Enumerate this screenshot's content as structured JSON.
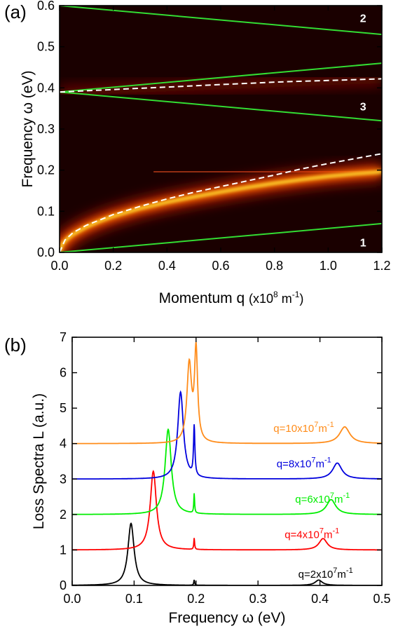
{
  "chart_data": [
    {
      "panel_label": "(a)",
      "type": "heatmap",
      "xlabel": "Momentum q",
      "xunit": "(x10",
      "xunit_sup": "8",
      "xunit_end": " m",
      "xunit_sup2": "-1",
      "xunit_close": ")",
      "ylabel": "Frequency ω (eV)",
      "xlim": [
        0.0,
        1.2
      ],
      "ylim": [
        0.0,
        0.6
      ],
      "xticks": [
        "0.0",
        "0.2",
        "0.4",
        "0.6",
        "0.8",
        "1.0",
        "1.2"
      ],
      "yticks": [
        "0.0",
        "0.1",
        "0.2",
        "0.3",
        "0.4",
        "0.5",
        "0.6"
      ],
      "region_labels": [
        {
          "text": "1",
          "q": 1.13,
          "w": 0.025
        },
        {
          "text": "2",
          "q": 1.13,
          "w": 0.57
        },
        {
          "text": "3",
          "q": 1.13,
          "w": 0.355
        }
      ],
      "green_lines": [
        {
          "q": [
            0.0,
            1.2
          ],
          "w": [
            0.0,
            0.07
          ]
        },
        {
          "q": [
            0.0,
            1.2
          ],
          "w": [
            0.39,
            0.32
          ]
        },
        {
          "q": [
            0.0,
            1.2
          ],
          "w": [
            0.39,
            0.46
          ]
        },
        {
          "q": [
            0.0,
            1.2
          ],
          "w": [
            0.6,
            0.53
          ]
        }
      ],
      "dashed_curves": [
        {
          "q": [
            0.0,
            0.02,
            0.05,
            0.1,
            0.2,
            0.3,
            0.4,
            0.5,
            0.6,
            0.7,
            0.8,
            0.9,
            1.0,
            1.1,
            1.2
          ],
          "w": [
            0.0,
            0.03,
            0.048,
            0.066,
            0.092,
            0.112,
            0.13,
            0.146,
            0.16,
            0.174,
            0.188,
            0.203,
            0.216,
            0.228,
            0.24
          ]
        },
        {
          "q": [
            0.0,
            0.1,
            0.2,
            0.3,
            0.4,
            0.5,
            0.6,
            0.7,
            0.8,
            0.9,
            1.0,
            1.1,
            1.2
          ],
          "w": [
            0.39,
            0.393,
            0.396,
            0.399,
            0.402,
            0.405,
            0.408,
            0.411,
            0.414,
            0.416,
            0.418,
            0.42,
            0.422
          ]
        }
      ],
      "bright_band": {
        "q": [
          0.0,
          0.01,
          0.03,
          0.05,
          0.1,
          0.15,
          0.2,
          0.3,
          0.4,
          0.5,
          0.6,
          0.7,
          0.8,
          0.9,
          1.0,
          1.1,
          1.2
        ],
        "w": [
          0.0,
          0.02,
          0.034,
          0.044,
          0.062,
          0.076,
          0.088,
          0.107,
          0.122,
          0.135,
          0.147,
          0.158,
          0.168,
          0.177,
          0.185,
          0.191,
          0.196
        ]
      },
      "faint_band": {
        "q": [
          0.0,
          0.3,
          0.6,
          0.9,
          1.2
        ],
        "w": [
          0.39,
          0.398,
          0.405,
          0.413,
          0.42
        ]
      },
      "flat_line_w": 0.196,
      "colors": {
        "background": "#1a0000",
        "band": "#ffdd33",
        "glow": "#e02000",
        "green": "#33dd33",
        "dashed": "#ffffff"
      }
    },
    {
      "panel_label": "(b)",
      "type": "line",
      "xlabel": "Frequency ω (eV)",
      "ylabel": "Loss Spectra L (a.u.)",
      "xlim": [
        0.0,
        0.5
      ],
      "ylim": [
        0,
        7
      ],
      "xticks": [
        "0.0",
        "0.1",
        "0.2",
        "0.3",
        "0.4",
        "0.5"
      ],
      "yticks": [
        "0",
        "1",
        "2",
        "3",
        "4",
        "5",
        "6",
        "7"
      ],
      "series": [
        {
          "label_main": "q=2x10",
          "label_sup": "7",
          "label_end": "m",
          "label_sup2": "-1",
          "color": "#000000",
          "offset": 0,
          "peaks": [
            {
              "w": 0.095,
              "h": 1.75,
              "g": 0.006
            },
            {
              "w": 0.197,
              "h": 0.15,
              "g": 0.0008
            },
            {
              "w": 0.398,
              "h": 0.15,
              "g": 0.007
            }
          ]
        },
        {
          "label_main": "q=4x10",
          "label_sup": "7",
          "label_end": "m",
          "label_sup2": "-1",
          "color": "#ff0000",
          "offset": 1,
          "peaks": [
            {
              "w": 0.131,
              "h": 2.22,
              "g": 0.006
            },
            {
              "w": 0.197,
              "h": 0.32,
              "g": 0.0008
            },
            {
              "w": 0.405,
              "h": 0.32,
              "g": 0.008
            }
          ]
        },
        {
          "label_main": "q=6x10",
          "label_sup": "7",
          "label_end": "m",
          "label_sup2": "-1",
          "color": "#00ee00",
          "offset": 2,
          "peaks": [
            {
              "w": 0.155,
              "h": 2.4,
              "g": 0.006
            },
            {
              "w": 0.197,
              "h": 0.55,
              "g": 0.0008
            },
            {
              "w": 0.418,
              "h": 0.42,
              "g": 0.009
            }
          ]
        },
        {
          "label_main": "q=8x10",
          "label_sup": "7",
          "label_end": "m",
          "label_sup2": "-1",
          "color": "#0000dd",
          "offset": 3,
          "peaks": [
            {
              "w": 0.175,
              "h": 2.45,
              "g": 0.0055
            },
            {
              "w": 0.197,
              "h": 1.4,
              "g": 0.0013
            },
            {
              "w": 0.428,
              "h": 0.45,
              "g": 0.009
            }
          ]
        },
        {
          "label_main": "q=10x10",
          "label_sup": "7",
          "label_end": "m",
          "label_sup2": "-1",
          "color": "#ff8c1a",
          "offset": 4,
          "peaks": [
            {
              "w": 0.189,
              "h": 2.2,
              "g": 0.0045
            },
            {
              "w": 0.2,
              "h": 2.55,
              "g": 0.003
            },
            {
              "w": 0.44,
              "h": 0.47,
              "g": 0.01
            }
          ]
        }
      ]
    }
  ]
}
